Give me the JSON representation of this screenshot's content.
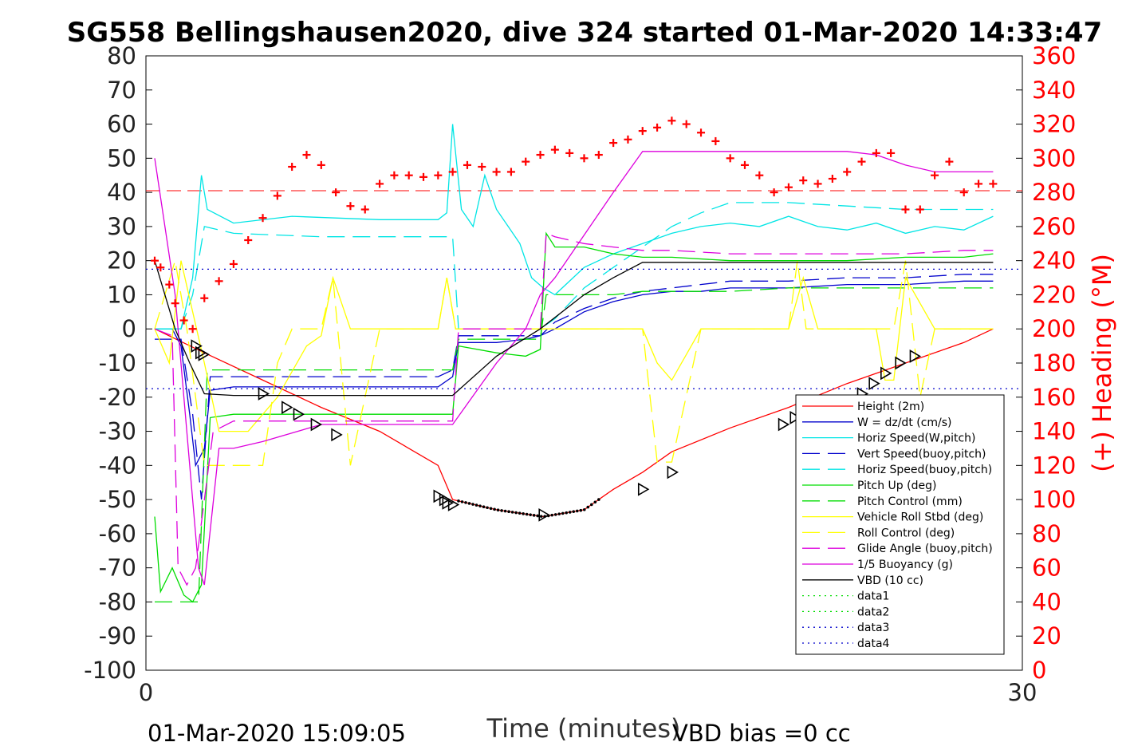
{
  "chart_data": {
    "type": "line",
    "title": "SG558 Bellingshausen2020, dive 324 started 01-Mar-2020 14:33:47",
    "xlabel": "Time (minutes)",
    "ylabel_right": "(+) Heading (°M)",
    "xlim": [
      0,
      30
    ],
    "ylim": [
      -100,
      80
    ],
    "ylim_right": [
      0,
      360
    ],
    "x_ticks": [
      "0",
      "30"
    ],
    "y_ticks": [
      "80",
      "70",
      "60",
      "50",
      "40",
      "30",
      "20",
      "10",
      "0",
      "-10",
      "-20",
      "-30",
      "-40",
      "-50",
      "-60",
      "-70",
      "-80",
      "-90",
      "-100"
    ],
    "y_ticks_right": [
      "360",
      "340",
      "320",
      "300",
      "280",
      "260",
      "240",
      "220",
      "200",
      "180",
      "160",
      "140",
      "120",
      "100",
      "80",
      "60",
      "40",
      "20",
      "0"
    ],
    "footer_left": "01-Mar-2020 15:09:05",
    "footer_right": "VBD bias =0 cc",
    "legend_position": "bottom-right",
    "colors": {
      "height": "#ff0000",
      "w": "#0000cc",
      "horiz_w": "#00e5e5",
      "vert_buoy": "#0000cc",
      "horiz_buoy": "#00e5e5",
      "pitch_up": "#00dd00",
      "pitch_ctrl": "#00dd00",
      "roll": "#ffff00",
      "roll_ctrl": "#ffff00",
      "glide": "#dd00dd",
      "buoyancy": "#dd00dd",
      "vbd": "#000000",
      "data1": "#00dd00",
      "data2": "#00dd00",
      "data3": "#0000cc",
      "data4": "#0000cc",
      "heading": "#ff0000"
    },
    "series": [
      {
        "key": "height",
        "name": "Height (2m)",
        "style": "solid",
        "x": [
          0.3,
          2,
          4,
          6,
          8,
          10,
          10.5,
          12,
          13.6,
          15,
          16,
          17,
          18,
          20,
          22,
          24,
          26,
          28,
          29
        ],
        "y": [
          0,
          -7,
          -15,
          -23,
          -30,
          -40,
          -50,
          -53,
          -55,
          -53,
          -47,
          -42,
          -36,
          -29,
          -23,
          -16,
          -10,
          -4,
          0
        ]
      },
      {
        "key": "w",
        "name": "W = dz/dt (cm/s)",
        "style": "solid",
        "x": [
          0.3,
          0.9,
          1.2,
          1.5,
          1.7,
          2.0,
          2.2,
          3,
          5,
          8,
          10,
          10.5,
          10.7,
          12,
          13,
          13.5,
          14,
          15,
          16,
          17,
          18,
          19,
          20,
          22,
          24,
          26,
          28,
          29
        ],
        "y": [
          0,
          0,
          -5,
          -25,
          -40,
          -35,
          -18,
          -17,
          -17,
          -17,
          -17,
          -14,
          -4,
          -4,
          -3,
          -2,
          0,
          5,
          8,
          10,
          11,
          11,
          12,
          12,
          13,
          13,
          14,
          14
        ]
      },
      {
        "key": "horiz_w",
        "name": "Horiz Speed(W,pitch)",
        "style": "solid",
        "x": [
          0.3,
          1.2,
          1.6,
          1.9,
          2.1,
          3,
          5,
          8,
          10,
          10.3,
          10.5,
          10.8,
          11.2,
          11.6,
          12,
          12.4,
          12.8,
          13.2,
          13.6,
          14,
          15,
          16,
          17,
          18,
          19,
          20,
          21,
          22,
          23,
          24,
          25,
          26,
          27,
          28,
          29
        ],
        "y": [
          0,
          0,
          15,
          45,
          35,
          31,
          33,
          32,
          32,
          34,
          60,
          35,
          30,
          45,
          35,
          30,
          25,
          15,
          12,
          10,
          18,
          22,
          25,
          28,
          30,
          31,
          30,
          33,
          30,
          29,
          31,
          28,
          30,
          29,
          33
        ]
      },
      {
        "key": "vert_buoy",
        "name": "Vert Speed(buoy,pitch)",
        "style": "dashed",
        "x": [
          0.3,
          1.2,
          1.6,
          1.9,
          2.2,
          3,
          6,
          10,
          10.5,
          10.7,
          13.5,
          14,
          15,
          16,
          17,
          18,
          20,
          22,
          24,
          26,
          28,
          29
        ],
        "y": [
          -3,
          -3,
          -25,
          -50,
          -14,
          -14,
          -14,
          -14,
          -12,
          -2,
          -2,
          2,
          6,
          9,
          11,
          12,
          14,
          14,
          15,
          15,
          16,
          16
        ]
      },
      {
        "key": "horiz_buoy",
        "name": "Horiz Speed(buoy,pitch)",
        "style": "dashed",
        "x": [
          0.3,
          1.2,
          1.6,
          2.0,
          3,
          6,
          10,
          10.5,
          10.7,
          13.5,
          14,
          15,
          16,
          17,
          18,
          19,
          20,
          22,
          24,
          26,
          28,
          29
        ],
        "y": [
          0,
          0,
          10,
          30,
          28,
          27,
          27,
          27,
          0,
          0,
          3,
          12,
          18,
          24,
          30,
          34,
          37,
          37,
          36,
          35,
          35,
          35
        ]
      },
      {
        "key": "pitch_up",
        "name": "Pitch Up (deg)",
        "style": "solid",
        "x": [
          0.3,
          0.5,
          0.9,
          1.3,
          1.6,
          1.9,
          2.2,
          3,
          6,
          10,
          10.5,
          10.7,
          12,
          13,
          13.5,
          13.7,
          14,
          15,
          16,
          17,
          18,
          20,
          22,
          24,
          26,
          28,
          29
        ],
        "y": [
          -55,
          -77,
          -70,
          -78,
          -80,
          -75,
          -26,
          -25,
          -25,
          -25,
          -25,
          -5,
          -7,
          -8,
          -6,
          28,
          24,
          24,
          22,
          21,
          21,
          20,
          20,
          20,
          21,
          21,
          22
        ]
      },
      {
        "key": "pitch_ctrl",
        "name": "Pitch Control (mm)",
        "style": "dashed",
        "x": [
          0.3,
          1.5,
          1.8,
          2.1,
          3,
          6,
          10,
          10.5,
          10.7,
          13.5,
          13.7,
          14,
          16,
          17,
          18,
          20,
          22,
          24,
          26,
          28,
          29
        ],
        "y": [
          -80,
          -80,
          -80,
          -12,
          -12,
          -12,
          -12,
          -12,
          -3,
          -3,
          10,
          10,
          10,
          11,
          11,
          11,
          12,
          12,
          12,
          12,
          12
        ]
      },
      {
        "key": "roll",
        "name": "Vehicle Roll Stbd (deg)",
        "style": "solid",
        "x": [
          0.3,
          0.8,
          1.2,
          1.6,
          2.0,
          2.5,
          3.5,
          4.5,
          5.5,
          6.0,
          6.4,
          7.0,
          8.0,
          9,
          10,
          10.3,
          10.6,
          11,
          12,
          13,
          14,
          15,
          16,
          17,
          17.5,
          18,
          19,
          20,
          21,
          22,
          22.5,
          23,
          24,
          25,
          25.3,
          25.6,
          26,
          27,
          28,
          29
        ],
        "y": [
          0,
          -10,
          20,
          5,
          -10,
          -30,
          -30,
          -20,
          -5,
          -2,
          15,
          0,
          0,
          0,
          0,
          15,
          0,
          0,
          0,
          0,
          0,
          0,
          0,
          0,
          -10,
          -15,
          0,
          0,
          0,
          0,
          15,
          0,
          0,
          0,
          -15,
          -15,
          15,
          0,
          0,
          0
        ]
      },
      {
        "key": "roll_ctrl",
        "name": "Roll Control (deg)",
        "style": "dashed",
        "x": [
          0.3,
          1.0,
          1.4,
          2.0,
          3,
          4,
          4.5,
          5,
          5.5,
          6.0,
          6.4,
          7,
          8,
          10,
          10.3,
          10.6,
          11,
          16,
          17,
          17.5,
          18,
          19,
          20,
          22,
          22.3,
          22.6,
          23,
          24,
          25,
          25.3,
          25.6,
          26,
          26.5,
          27,
          28,
          29
        ],
        "y": [
          0,
          20,
          0,
          -40,
          -40,
          -40,
          -10,
          0,
          0,
          0,
          15,
          -40,
          0,
          0,
          15,
          0,
          0,
          0,
          0,
          -39,
          -39,
          0,
          0,
          0,
          20,
          0,
          0,
          0,
          0,
          0,
          0,
          20,
          -20,
          0,
          0,
          0
        ]
      },
      {
        "key": "glide",
        "name": "Glide Angle (buoy,pitch)",
        "style": "dashed",
        "x": [
          0.3,
          0.9,
          1.1,
          1.4,
          1.7,
          2.0,
          2.3,
          3,
          6,
          10,
          10.5,
          10.7,
          12,
          13,
          13.5,
          13.7,
          14,
          15,
          16,
          17,
          18,
          20,
          22,
          24,
          26,
          28,
          29
        ],
        "y": [
          0,
          -2,
          -70,
          -75,
          -70,
          -50,
          -30,
          -27,
          -27,
          -27,
          -27,
          0,
          0,
          0,
          0,
          28,
          27,
          25,
          24,
          23,
          23,
          22,
          22,
          22,
          22,
          23,
          23
        ]
      },
      {
        "key": "buoyancy",
        "name": "1/5 Buoyancy (g)",
        "style": "solid",
        "x": [
          0.3,
          1.0,
          1.5,
          1.8,
          2.0,
          2.5,
          3,
          4,
          6,
          10,
          10.5,
          12,
          13,
          13.5,
          14,
          16,
          17,
          18,
          20,
          22,
          24,
          25,
          26,
          27,
          28,
          29
        ],
        "y": [
          50,
          10,
          -40,
          -70,
          -75,
          -35,
          -35,
          -33,
          -28,
          -28,
          -28,
          -10,
          0,
          10,
          15,
          40,
          52,
          52,
          52,
          52,
          52,
          51,
          48,
          46,
          46,
          46
        ]
      },
      {
        "key": "vbd",
        "name": "VBD (10 cc)",
        "style": "solid",
        "x": [
          0.3,
          1.0,
          1.5,
          2.0,
          3,
          5,
          8,
          10.5,
          12,
          13.5,
          15,
          16,
          17,
          20,
          24,
          29
        ],
        "y": [
          20,
          0,
          -10,
          -19,
          -19.5,
          -19.5,
          -19.5,
          -19.5,
          -8,
          0,
          10,
          15,
          19.5,
          19.5,
          19.5,
          19.5
        ]
      },
      {
        "key": "data1",
        "name": "data1",
        "style": "dotted",
        "x": [],
        "y": []
      },
      {
        "key": "data2",
        "name": "data2",
        "style": "dotted",
        "x": [],
        "y": []
      },
      {
        "key": "data3",
        "name": "data3",
        "style": "dotted",
        "x": [
          0,
          30
        ],
        "y": [
          17.5,
          17.5
        ]
      },
      {
        "key": "data4",
        "name": "data4",
        "style": "dotted",
        "x": [
          0,
          30
        ],
        "y": [
          -17.5,
          -17.5
        ]
      }
    ],
    "heading_series": {
      "axis": "right",
      "marker": "+",
      "x": [
        0.3,
        0.5,
        0.8,
        1.0,
        1.3,
        1.6,
        2.0,
        2.5,
        3,
        3.5,
        4,
        4.5,
        5,
        5.5,
        6,
        6.5,
        7,
        7.5,
        8,
        8.5,
        9,
        9.5,
        10,
        10.5,
        11,
        11.5,
        12,
        12.5,
        13,
        13.5,
        14,
        14.5,
        15,
        15.5,
        16,
        16.5,
        17,
        17.5,
        18,
        18.5,
        19,
        19.5,
        20,
        20.5,
        21,
        21.5,
        22,
        22.5,
        23,
        23.5,
        24,
        24.5,
        25,
        25.5,
        26,
        26.5,
        27,
        27.5,
        28,
        28.5,
        29
      ],
      "y": [
        240,
        236,
        226,
        215,
        205,
        200,
        218,
        228,
        238,
        252,
        265,
        278,
        295,
        302,
        296,
        280,
        272,
        270,
        285,
        290,
        290,
        289,
        290,
        292,
        296,
        295,
        292,
        292,
        298,
        302,
        305,
        303,
        300,
        302,
        309,
        311,
        316,
        318,
        322,
        320,
        315,
        310,
        300,
        296,
        290,
        280,
        283,
        287,
        285,
        288,
        292,
        298,
        303,
        303,
        270,
        270,
        290,
        298,
        280,
        285,
        285
      ]
    },
    "heading_reference": {
      "axis": "right",
      "value": 281
    },
    "markers": {
      "symbol": "triangle",
      "x": [
        1.7,
        1.85,
        1.95,
        4.0,
        4.8,
        5.2,
        5.8,
        6.5,
        10,
        10.2,
        10.3,
        10.5,
        13.6,
        17.0,
        18.0,
        21.8,
        22.2,
        24.5,
        24.9,
        25.3,
        25.8,
        26.3
      ],
      "y": [
        -5,
        -7,
        -7.5,
        -19,
        -23,
        -25,
        -28,
        -31,
        -49,
        -50,
        -51,
        -51.5,
        -54.5,
        -47,
        -42,
        -28,
        -26,
        -19,
        -16,
        -13,
        -10,
        -8
      ]
    },
    "bottom_dots": {
      "x_start": 10.7,
      "x_end": 15.5,
      "count": 40,
      "curve": "height"
    }
  }
}
